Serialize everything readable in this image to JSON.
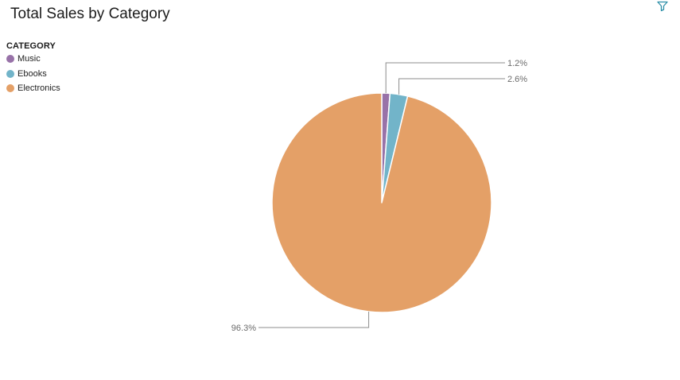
{
  "chart_data": {
    "type": "pie",
    "title": "Total Sales by Category",
    "legend_title": "CATEGORY",
    "legend_position": "top-left",
    "series": [
      {
        "name": "Music",
        "value": 1.2,
        "label": "1.2%",
        "color": "#9872a8"
      },
      {
        "name": "Ebooks",
        "value": 2.6,
        "label": "2.6%",
        "color": "#72b4c9"
      },
      {
        "name": "Electronics",
        "value": 96.3,
        "label": "96.3%",
        "color": "#e4a067"
      }
    ]
  },
  "toolbar": {
    "filter_icon": "filter-icon",
    "filter_color": "#2d8fa8"
  }
}
